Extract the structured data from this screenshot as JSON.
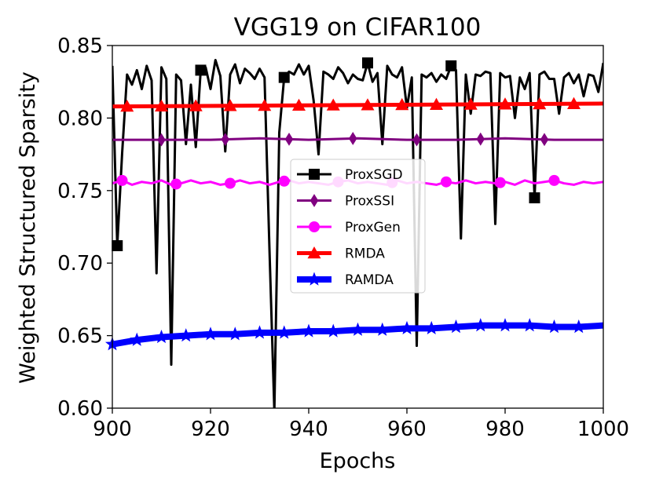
{
  "chart_data": {
    "type": "line",
    "title": "VGG19 on CIFAR100",
    "xlabel": "Epochs",
    "ylabel": "Weighted Structured Sparsity",
    "xlim": [
      900,
      1000
    ],
    "ylim": [
      0.6,
      0.85
    ],
    "xticks": [
      "900",
      "920",
      "940",
      "960",
      "980",
      "1000"
    ],
    "yticks": [
      "0.60",
      "0.65",
      "0.70",
      "0.75",
      "0.80",
      "0.85"
    ],
    "legend_position": "center",
    "series": [
      {
        "name": "ProxSGD",
        "color": "#000000",
        "marker": "square",
        "x": [
          900,
          901,
          902,
          903,
          904,
          905,
          906,
          907,
          908,
          909,
          910,
          911,
          912,
          913,
          914,
          915,
          916,
          917,
          918,
          919,
          920,
          921,
          922,
          923,
          924,
          925,
          926,
          927,
          928,
          929,
          930,
          931,
          932,
          933,
          934,
          935,
          936,
          937,
          938,
          939,
          940,
          941,
          942,
          943,
          944,
          945,
          946,
          947,
          948,
          949,
          950,
          951,
          952,
          953,
          954,
          955,
          956,
          957,
          958,
          959,
          960,
          961,
          962,
          963,
          964,
          965,
          966,
          967,
          968,
          969,
          970,
          971,
          972,
          973,
          974,
          975,
          976,
          977,
          978,
          979,
          980,
          981,
          982,
          983,
          984,
          985,
          986,
          987,
          988,
          989,
          990,
          991,
          992,
          993,
          994,
          995,
          996,
          997,
          998,
          999,
          1000
        ],
        "y": [
          0.836,
          0.712,
          0.776,
          0.83,
          0.823,
          0.833,
          0.82,
          0.836,
          0.826,
          0.693,
          0.835,
          0.827,
          0.63,
          0.83,
          0.826,
          0.782,
          0.823,
          0.78,
          0.833,
          0.835,
          0.82,
          0.84,
          0.829,
          0.777,
          0.83,
          0.837,
          0.824,
          0.834,
          0.831,
          0.827,
          0.834,
          0.828,
          0.71,
          0.598,
          0.79,
          0.828,
          0.832,
          0.83,
          0.837,
          0.83,
          0.836,
          0.812,
          0.775,
          0.832,
          0.83,
          0.827,
          0.835,
          0.831,
          0.824,
          0.83,
          0.827,
          0.826,
          0.838,
          0.825,
          0.831,
          0.782,
          0.836,
          0.83,
          0.828,
          0.835,
          0.807,
          0.828,
          0.643,
          0.83,
          0.828,
          0.831,
          0.825,
          0.83,
          0.827,
          0.836,
          0.833,
          0.717,
          0.83,
          0.803,
          0.83,
          0.829,
          0.832,
          0.831,
          0.727,
          0.831,
          0.828,
          0.829,
          0.8,
          0.828,
          0.82,
          0.831,
          0.745,
          0.83,
          0.832,
          0.827,
          0.827,
          0.803,
          0.828,
          0.831,
          0.824,
          0.83,
          0.815,
          0.83,
          0.829,
          0.818,
          0.838
        ],
        "marker_x": [
          901,
          918,
          935,
          952,
          969,
          986
        ]
      },
      {
        "name": "ProxSSI",
        "color": "#800080",
        "marker": "diamond",
        "x": [
          900,
          910,
          920,
          930,
          940,
          950,
          960,
          970,
          980,
          990,
          1000
        ],
        "y": [
          0.785,
          0.785,
          0.785,
          0.786,
          0.785,
          0.786,
          0.785,
          0.785,
          0.786,
          0.785,
          0.785
        ],
        "marker_x": [
          910,
          923,
          936,
          949,
          962,
          975,
          988
        ]
      },
      {
        "name": "ProxGen",
        "color": "#ff00ff",
        "marker": "circle",
        "x": [
          900,
          902,
          904,
          906,
          908,
          910,
          912,
          914,
          916,
          918,
          920,
          922,
          924,
          926,
          928,
          930,
          932,
          934,
          936,
          938,
          940,
          942,
          944,
          946,
          948,
          950,
          952,
          954,
          956,
          958,
          960,
          962,
          964,
          966,
          968,
          970,
          972,
          974,
          976,
          978,
          980,
          982,
          984,
          986,
          988,
          990,
          992,
          994,
          996,
          998,
          1000
        ],
        "y": [
          0.755,
          0.757,
          0.754,
          0.756,
          0.755,
          0.757,
          0.754,
          0.755,
          0.757,
          0.755,
          0.756,
          0.754,
          0.755,
          0.757,
          0.755,
          0.756,
          0.754,
          0.756,
          0.757,
          0.755,
          0.756,
          0.755,
          0.754,
          0.756,
          0.757,
          0.755,
          0.756,
          0.755,
          0.754,
          0.757,
          0.755,
          0.756,
          0.755,
          0.754,
          0.756,
          0.755,
          0.757,
          0.755,
          0.756,
          0.755,
          0.756,
          0.754,
          0.757,
          0.755,
          0.756,
          0.757,
          0.755,
          0.754,
          0.756,
          0.755,
          0.756
        ],
        "marker_x": [
          902,
          913,
          924,
          935,
          946,
          957,
          968,
          979,
          990
        ]
      },
      {
        "name": "RMDA",
        "color": "#ff0000",
        "marker": "triangle",
        "x": [
          900,
          1000
        ],
        "y": [
          0.808,
          0.81
        ],
        "marker_x": [
          903,
          910,
          917,
          924,
          931,
          938,
          945,
          952,
          959,
          966,
          973,
          980,
          987,
          994
        ]
      },
      {
        "name": "RAMDA",
        "color": "#0000ff",
        "marker": "star",
        "x": [
          900,
          905,
          910,
          915,
          920,
          925,
          930,
          935,
          940,
          945,
          950,
          955,
          960,
          965,
          970,
          975,
          980,
          985,
          990,
          995,
          1000
        ],
        "y": [
          0.644,
          0.647,
          0.649,
          0.65,
          0.651,
          0.651,
          0.652,
          0.652,
          0.653,
          0.653,
          0.654,
          0.654,
          0.655,
          0.655,
          0.656,
          0.657,
          0.657,
          0.657,
          0.656,
          0.656,
          0.657
        ],
        "marker_x": [
          900,
          905,
          910,
          915,
          920,
          925,
          930,
          935,
          940,
          945,
          950,
          955,
          960,
          965,
          970,
          975,
          980,
          985,
          990,
          995
        ]
      }
    ]
  }
}
